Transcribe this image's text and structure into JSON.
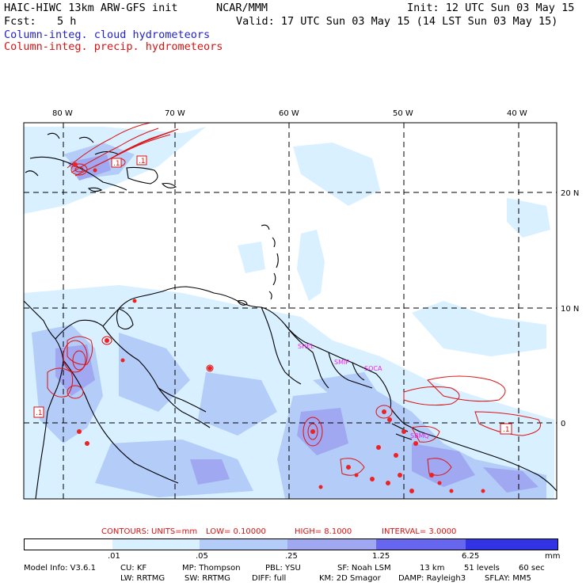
{
  "header": {
    "title_left": "HAIC-HIWC 13km ARW-GFS init",
    "org": "NCAR/MMM",
    "init": "Init: 12 UTC Sun 03 May 15",
    "fcst_label": "Fcst:",
    "fcst_value": "5 h",
    "valid": "Valid: 17 UTC Sun 03 May 15 (14 LST Sun 03 May 15)",
    "legend_cloud": "Column-integ. cloud hydrometeors",
    "legend_precip": "Column-integ. precip. hydrometeors"
  },
  "map": {
    "lon_labels": [
      "80 W",
      "70 W",
      "60 W",
      "50 W",
      "40 W"
    ],
    "lat_labels": [
      "20 N",
      "10 N",
      "0"
    ],
    "station_labels": [
      "SHEL",
      "SMIP",
      "SOCA",
      "SBMQ"
    ],
    "contour_labels": [
      ".1",
      ".1",
      ".1",
      ".1"
    ]
  },
  "contours_info": {
    "label": "CONTOURS:",
    "units": "UNITS=mm",
    "low": "LOW= 0.10000",
    "high": "HIGH= 8.1000",
    "interval": "INTERVAL= 3.0000"
  },
  "colorbar": {
    "colors": [
      "#ffffff",
      "#d8f0ff",
      "#b4ccf8",
      "#9fa8f0",
      "#6666ee",
      "#3333e6",
      "#1a1ae0"
    ],
    "ticks": [
      ".01",
      ".05",
      ".25",
      "1.25",
      "6.25"
    ],
    "unit": "mm"
  },
  "model_info": {
    "line1": [
      "Model Info: V3.6.1",
      "CU: KF",
      "MP: Thompson",
      "PBL: YSU",
      "SF: Noah LSM",
      "13 km",
      "51 levels",
      "60 sec"
    ],
    "line2": [
      "LW: RRTMG",
      "SW: RRTMG",
      "DIFF: full",
      "KM: 2D Smagor",
      "DAMP: Rayleigh3",
      "SFLAY: MM5"
    ]
  }
}
